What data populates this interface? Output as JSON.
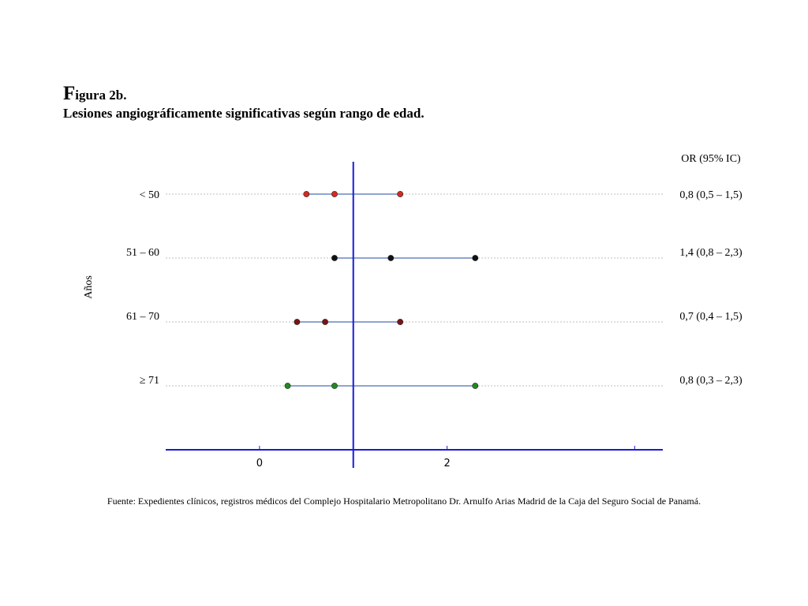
{
  "figure": {
    "label_initial": "F",
    "label_rest": "igura 2b.",
    "subtitle": "Lesiones angiográficamente significativas según rango de edad."
  },
  "chart_data": {
    "type": "scatter",
    "title": "",
    "ylabel": "Años",
    "xlabel": "",
    "or_header": "OR (95% IC)",
    "xlim": [
      -1,
      4.3
    ],
    "x_ticks": [
      0,
      2
    ],
    "reference_line": 1,
    "grid": false,
    "categories": [
      "< 50",
      "51 – 60",
      "61 – 70",
      "≥ 71"
    ],
    "series": [
      {
        "category": "< 50",
        "or": 0.8,
        "lower": 0.5,
        "upper": 1.5,
        "label": "0,8 (0,5 – 1,5)",
        "color": "#d42a1f"
      },
      {
        "category": "51 – 60",
        "or": 1.4,
        "lower": 0.8,
        "upper": 2.3,
        "label": "1,4 (0,8 – 2,3)",
        "color": "#111111"
      },
      {
        "category": "61 – 70",
        "or": 0.7,
        "lower": 0.4,
        "upper": 1.5,
        "label": "0,7 (0,4 – 1,5)",
        "color": "#7a1414"
      },
      {
        "category": "≥ 71",
        "or": 0.8,
        "lower": 0.3,
        "upper": 2.3,
        "label": "0,8 (0,3 – 2,3)",
        "color": "#1f8a1f"
      }
    ],
    "colors": {
      "axis": "#1a1adb",
      "ci_line": "#4a6fb5",
      "guide": "#bfbfbf"
    }
  },
  "source": "Fuente: Expedientes clínicos, registros médicos del Complejo Hospitalario Metropolitano Dr. Arnulfo Arias Madrid de la Caja del Seguro Social de Panamá."
}
